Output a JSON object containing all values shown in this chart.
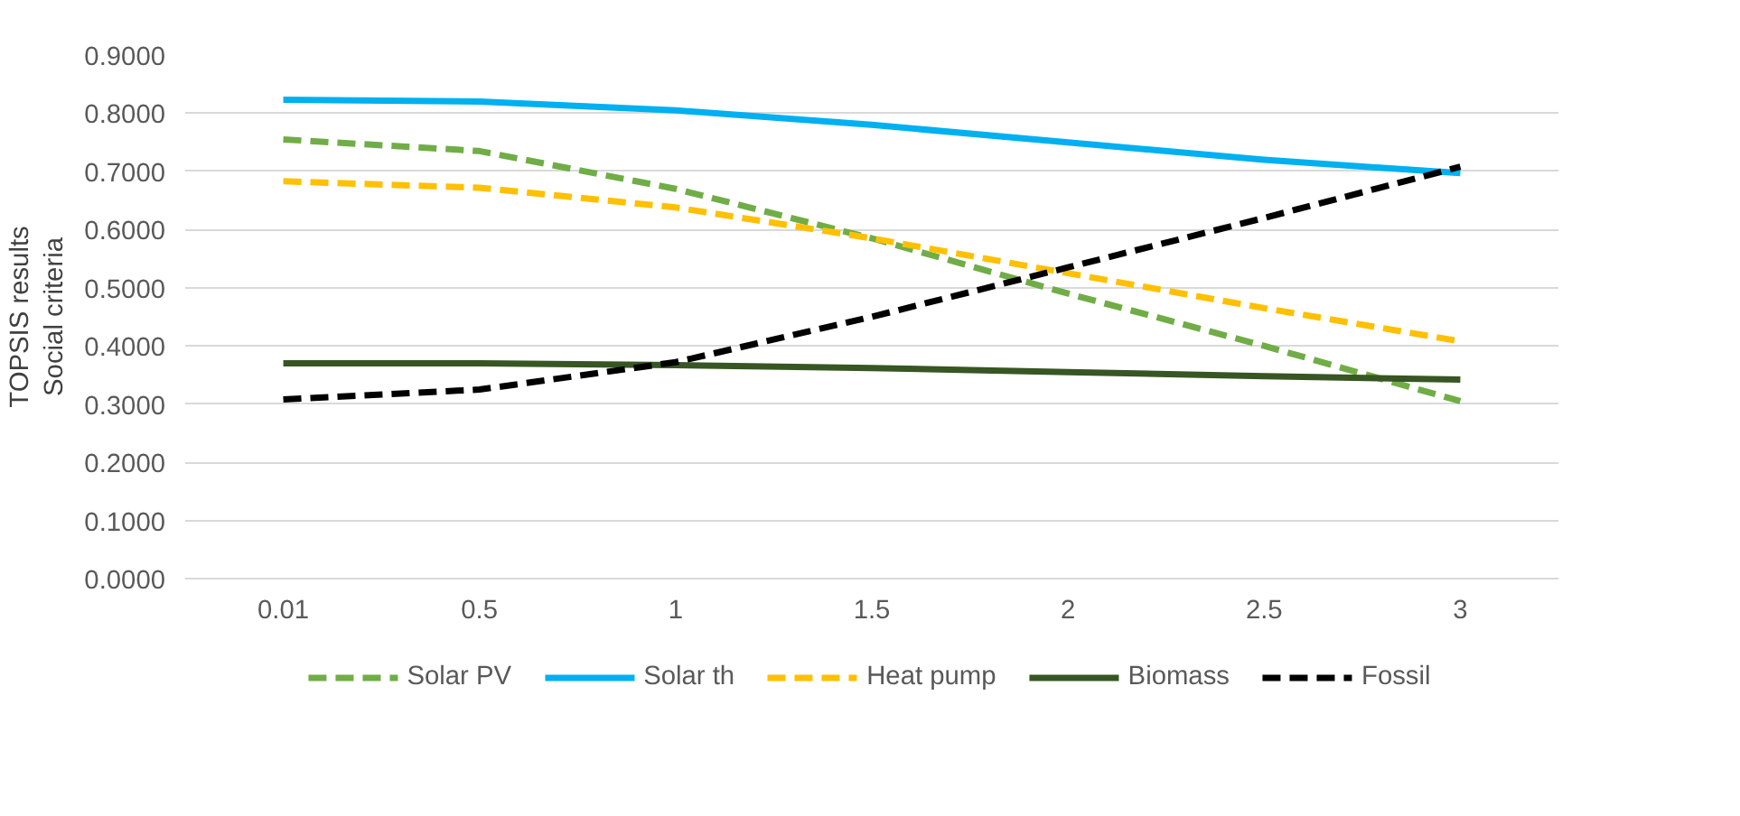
{
  "chart_data": {
    "type": "line",
    "ylabel": "TOPSIS results\nSocial criteria",
    "categories": [
      "0.01",
      "0.5",
      "1",
      "1.5",
      "2",
      "2.5",
      "3"
    ],
    "series": [
      {
        "name": "Solar PV",
        "color": "#70ad47",
        "line_style": "dashed",
        "values": [
          0.755,
          0.735,
          0.67,
          0.585,
          0.49,
          0.4,
          0.305
        ]
      },
      {
        "name": "Solar th",
        "color": "#00b0f0",
        "line_style": "solid",
        "values": [
          0.823,
          0.82,
          0.805,
          0.78,
          0.75,
          0.72,
          0.697
        ]
      },
      {
        "name": "Heat pump",
        "color": "#ffc000",
        "line_style": "dashed",
        "values": [
          0.683,
          0.672,
          0.638,
          0.585,
          0.525,
          0.465,
          0.408
        ]
      },
      {
        "name": "Biomass",
        "color": "#375623",
        "line_style": "solid",
        "values": [
          0.37,
          0.37,
          0.367,
          0.362,
          0.355,
          0.348,
          0.342
        ]
      },
      {
        "name": "Fossil",
        "color": "#000000",
        "line_style": "dashed",
        "values": [
          0.308,
          0.325,
          0.372,
          0.45,
          0.535,
          0.62,
          0.708
        ]
      }
    ],
    "ylim": [
      0,
      0.9
    ],
    "yticks": [
      {
        "value": 0,
        "label": "0.0000"
      },
      {
        "value": 0.1,
        "label": "0.1000"
      },
      {
        "value": 0.2,
        "label": "0.2000"
      },
      {
        "value": 0.3,
        "label": "0.3000"
      },
      {
        "value": 0.4,
        "label": "0.4000"
      },
      {
        "value": 0.5,
        "label": "0.5000"
      },
      {
        "value": 0.6,
        "label": "0.6000"
      },
      {
        "value": 0.7,
        "label": "0.7000"
      },
      {
        "value": 0.8,
        "label": "0.8000"
      },
      {
        "value": 0.9,
        "label": "0.9000"
      }
    ],
    "grid": "y",
    "legend": "bottom",
    "marker": "none"
  }
}
